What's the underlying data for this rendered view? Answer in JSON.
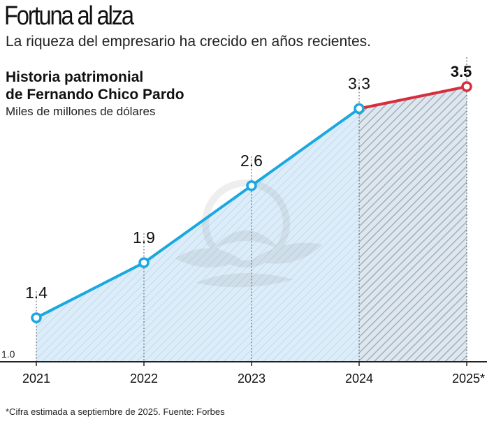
{
  "header": {
    "headline": "Fortuna al alza",
    "subtitle": "La riqueza del empresario ha crecido en años recientes."
  },
  "chart_data": {
    "type": "line",
    "title_line1": "Historia patrimonial",
    "title_line2": "de Fernando Chico Pardo",
    "units": "Miles de millones de dólares",
    "categories": [
      "2021",
      "2022",
      "2023",
      "2024",
      "2025*"
    ],
    "values": [
      1.4,
      1.9,
      2.6,
      3.3,
      3.5
    ],
    "value_labels": [
      "1.4",
      "1.9",
      "2.6",
      "3.3",
      "3.5"
    ],
    "y_axis_min_label": "1.0",
    "ylim": [
      1.0,
      3.5
    ],
    "estimated_from_index": 3,
    "grid": false,
    "colors": {
      "actual_line": "#1ba8e0",
      "estimate_line": "#d62e3c",
      "area_fill": "#d9ecf8",
      "estimate_fill": "#cfdbe6",
      "axis": "#222222"
    }
  },
  "footnote": "*Cifra estimada a septiembre de 2025. Fuente: Forbes"
}
